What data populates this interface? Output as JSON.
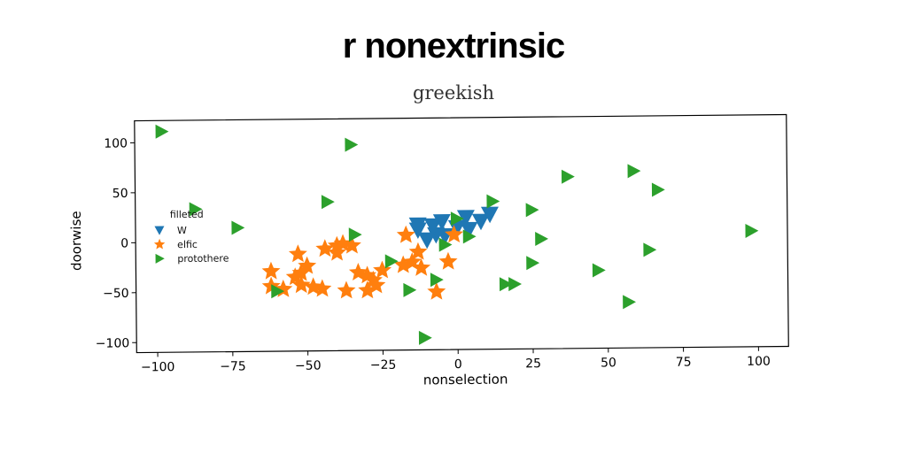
{
  "title": "r nonextrinsic",
  "chart_data": {
    "type": "scatter",
    "title": "greekish",
    "xlabel": "nonselection",
    "ylabel": "doorwise",
    "xlim": [
      -107,
      110
    ],
    "ylim": [
      -110,
      122
    ],
    "xticks": [
      -100,
      -75,
      -50,
      -25,
      0,
      25,
      50,
      75,
      100
    ],
    "yticks": [
      -100,
      -50,
      0,
      50,
      100
    ],
    "xtick_labels": [
      "−100",
      "−75",
      "−50",
      "−25",
      "0",
      "25",
      "50",
      "75",
      "100"
    ],
    "ytick_labels": [
      "−100",
      "−50",
      "0",
      "50",
      "100"
    ],
    "grid": false,
    "legend": {
      "title": "filleted",
      "placement": "center-left"
    },
    "series": [
      {
        "name": "W",
        "marker": "triangle-down",
        "color": "#1f77b4",
        "points": [
          [
            -13,
            15
          ],
          [
            -5,
            18
          ],
          [
            3,
            22
          ],
          [
            11,
            25
          ],
          [
            8,
            18
          ],
          [
            0,
            12
          ],
          [
            -7,
            5
          ],
          [
            -10,
            0
          ],
          [
            -4,
            4
          ],
          [
            4,
            10
          ],
          [
            -13,
            10
          ],
          [
            -8,
            14
          ]
        ]
      },
      {
        "name": "elfic",
        "marker": "star",
        "color": "#ff7f0e",
        "points": [
          [
            -62,
            -30
          ],
          [
            -62,
            -45
          ],
          [
            -58,
            -48
          ],
          [
            -53,
            -13
          ],
          [
            -52,
            -32
          ],
          [
            -52,
            -44
          ],
          [
            -50,
            -25
          ],
          [
            -48,
            -46
          ],
          [
            -45,
            -48
          ],
          [
            -40,
            -12
          ],
          [
            -40,
            -5
          ],
          [
            -38,
            -3
          ],
          [
            -37,
            -50
          ],
          [
            -35,
            -5
          ],
          [
            -33,
            -32
          ],
          [
            -30,
            -35
          ],
          [
            -30,
            -50
          ],
          [
            -28,
            -40
          ],
          [
            -27,
            -45
          ],
          [
            -25,
            -30
          ],
          [
            -18,
            -25
          ],
          [
            -17,
            5
          ],
          [
            -15,
            -22
          ],
          [
            -13,
            -12
          ],
          [
            -12,
            -28
          ],
          [
            -7,
            -52
          ],
          [
            -3,
            -22
          ],
          [
            -1,
            5
          ],
          [
            -54,
            -36
          ],
          [
            -44,
            -8
          ]
        ]
      },
      {
        "name": "protothere",
        "marker": "triangle-right",
        "color": "#2ca02c",
        "points": [
          [
            -98,
            111
          ],
          [
            -87,
            33
          ],
          [
            -73,
            14
          ],
          [
            -60,
            -50
          ],
          [
            -43,
            39
          ],
          [
            -35,
            96
          ],
          [
            -34,
            6
          ],
          [
            -22,
            -21
          ],
          [
            -16,
            -50
          ],
          [
            -11,
            -98
          ],
          [
            -7,
            -40
          ],
          [
            -4,
            -5
          ],
          [
            0,
            21
          ],
          [
            4,
            3
          ],
          [
            12,
            38
          ],
          [
            16,
            -45
          ],
          [
            19,
            -45
          ],
          [
            25,
            29
          ],
          [
            25,
            -24
          ],
          [
            28,
            0
          ],
          [
            37,
            62
          ],
          [
            47,
            -32
          ],
          [
            57,
            -64
          ],
          [
            59,
            67
          ],
          [
            64,
            -12
          ],
          [
            67,
            48
          ],
          [
            98,
            6
          ]
        ]
      }
    ]
  }
}
